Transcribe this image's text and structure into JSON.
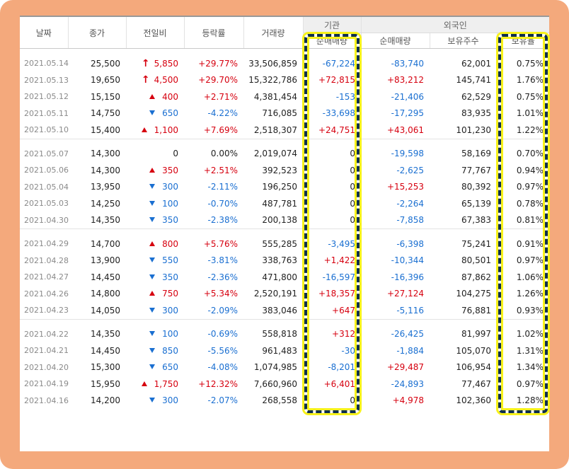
{
  "headers": {
    "date": "날짜",
    "close": "종가",
    "change": "전일비",
    "rate": "등락률",
    "volume": "거래량",
    "institution_group": "기관",
    "foreign_group": "외국인",
    "inst_net": "순매매량",
    "foreign_net": "순매매량",
    "foreign_hold": "보유주수",
    "foreign_ratio": "보유율"
  },
  "colors": {
    "rise": "#d6000f",
    "fall": "#1a6fd1",
    "frame": "#f4a97c",
    "highlight_border": "#0f2f4d",
    "highlight_glow": "#f7f21b"
  },
  "rows": [
    {
      "date": "2021.05.14",
      "close": "25,500",
      "dir": "limit",
      "diff": "5,850",
      "rate": "+29.77%",
      "volume": "33,506,859",
      "inst": "-67,224",
      "fnet": "-83,740",
      "fhold": "62,001",
      "fratio": "0.75%"
    },
    {
      "date": "2021.05.13",
      "close": "19,650",
      "dir": "limit",
      "diff": "4,500",
      "rate": "+29.70%",
      "volume": "15,322,786",
      "inst": "+72,815",
      "fnet": "+83,212",
      "fhold": "145,741",
      "fratio": "1.76%"
    },
    {
      "date": "2021.05.12",
      "close": "15,150",
      "dir": "up",
      "diff": "400",
      "rate": "+2.71%",
      "volume": "4,381,454",
      "inst": "-153",
      "fnet": "-21,406",
      "fhold": "62,529",
      "fratio": "0.75%"
    },
    {
      "date": "2021.05.11",
      "close": "14,750",
      "dir": "down",
      "diff": "650",
      "rate": "-4.22%",
      "volume": "716,085",
      "inst": "-33,698",
      "fnet": "-17,295",
      "fhold": "83,935",
      "fratio": "1.01%"
    },
    {
      "date": "2021.05.10",
      "close": "15,400",
      "dir": "up",
      "diff": "1,100",
      "rate": "+7.69%",
      "volume": "2,518,307",
      "inst": "+24,751",
      "fnet": "+43,061",
      "fhold": "101,230",
      "fratio": "1.22%"
    },
    {
      "date": "2021.05.07",
      "close": "14,300",
      "dir": "flat",
      "diff": "0",
      "rate": "0.00%",
      "volume": "2,019,074",
      "inst": "0",
      "fnet": "-19,598",
      "fhold": "58,169",
      "fratio": "0.70%"
    },
    {
      "date": "2021.05.06",
      "close": "14,300",
      "dir": "up",
      "diff": "350",
      "rate": "+2.51%",
      "volume": "392,523",
      "inst": "0",
      "fnet": "-2,625",
      "fhold": "77,767",
      "fratio": "0.94%"
    },
    {
      "date": "2021.05.04",
      "close": "13,950",
      "dir": "down",
      "diff": "300",
      "rate": "-2.11%",
      "volume": "196,250",
      "inst": "0",
      "fnet": "+15,253",
      "fhold": "80,392",
      "fratio": "0.97%"
    },
    {
      "date": "2021.05.03",
      "close": "14,250",
      "dir": "down",
      "diff": "100",
      "rate": "-0.70%",
      "volume": "487,781",
      "inst": "0",
      "fnet": "-2,264",
      "fhold": "65,139",
      "fratio": "0.78%"
    },
    {
      "date": "2021.04.30",
      "close": "14,350",
      "dir": "down",
      "diff": "350",
      "rate": "-2.38%",
      "volume": "200,138",
      "inst": "0",
      "fnet": "-7,858",
      "fhold": "67,383",
      "fratio": "0.81%"
    },
    {
      "date": "2021.04.29",
      "close": "14,700",
      "dir": "up",
      "diff": "800",
      "rate": "+5.76%",
      "volume": "555,285",
      "inst": "-3,495",
      "fnet": "-6,398",
      "fhold": "75,241",
      "fratio": "0.91%"
    },
    {
      "date": "2021.04.28",
      "close": "13,900",
      "dir": "down",
      "diff": "550",
      "rate": "-3.81%",
      "volume": "338,763",
      "inst": "+1,422",
      "fnet": "-10,344",
      "fhold": "80,501",
      "fratio": "0.97%"
    },
    {
      "date": "2021.04.27",
      "close": "14,450",
      "dir": "down",
      "diff": "350",
      "rate": "-2.36%",
      "volume": "471,800",
      "inst": "-16,597",
      "fnet": "-16,396",
      "fhold": "87,862",
      "fratio": "1.06%"
    },
    {
      "date": "2021.04.26",
      "close": "14,800",
      "dir": "up",
      "diff": "750",
      "rate": "+5.34%",
      "volume": "2,520,191",
      "inst": "+18,357",
      "fnet": "+27,124",
      "fhold": "104,275",
      "fratio": "1.26%"
    },
    {
      "date": "2021.04.23",
      "close": "14,050",
      "dir": "down",
      "diff": "300",
      "rate": "-2.09%",
      "volume": "383,046",
      "inst": "+647",
      "fnet": "-5,116",
      "fhold": "76,881",
      "fratio": "0.93%"
    },
    {
      "date": "2021.04.22",
      "close": "14,350",
      "dir": "down",
      "diff": "100",
      "rate": "-0.69%",
      "volume": "558,818",
      "inst": "+312",
      "fnet": "-26,425",
      "fhold": "81,997",
      "fratio": "1.02%"
    },
    {
      "date": "2021.04.21",
      "close": "14,450",
      "dir": "down",
      "diff": "850",
      "rate": "-5.56%",
      "volume": "961,483",
      "inst": "-30",
      "fnet": "-1,884",
      "fhold": "105,070",
      "fratio": "1.31%"
    },
    {
      "date": "2021.04.20",
      "close": "15,300",
      "dir": "down",
      "diff": "650",
      "rate": "-4.08%",
      "volume": "1,074,985",
      "inst": "-8,201",
      "fnet": "+29,487",
      "fhold": "106,954",
      "fratio": "1.34%"
    },
    {
      "date": "2021.04.19",
      "close": "15,950",
      "dir": "up",
      "diff": "1,750",
      "rate": "+12.32%",
      "volume": "7,660,960",
      "inst": "+6,401",
      "fnet": "-24,893",
      "fhold": "77,467",
      "fratio": "0.97%"
    },
    {
      "date": "2021.04.16",
      "close": "14,200",
      "dir": "down",
      "diff": "300",
      "rate": "-2.07%",
      "volume": "268,558",
      "inst": "0",
      "fnet": "+4,978",
      "fhold": "102,360",
      "fratio": "1.28%"
    }
  ],
  "group_size": 5,
  "highlighted_columns": [
    "inst",
    "fratio"
  ]
}
